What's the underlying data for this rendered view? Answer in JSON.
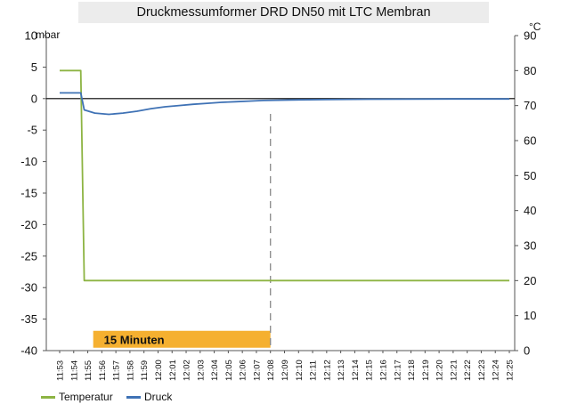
{
  "chart_data": {
    "type": "line",
    "title": "Druckmessumformer DRD DN50 mit LTC Membran",
    "y_left": {
      "label": "mbar",
      "ticks": [
        10,
        5,
        0,
        -5,
        -10,
        -15,
        -20,
        -25,
        -30,
        -35,
        -40
      ],
      "range": [
        -40,
        10
      ]
    },
    "y_right": {
      "label": "°C",
      "ticks": [
        90,
        80,
        70,
        60,
        50,
        40,
        30,
        20,
        10,
        0
      ],
      "range": [
        0,
        90
      ]
    },
    "x_ticks": [
      "11:53",
      "11:54",
      "11:55",
      "11:56",
      "11:57",
      "11:58",
      "11:59",
      "12:00",
      "12:01",
      "12:02",
      "12:03",
      "12:04",
      "12:05",
      "12:06",
      "12:07",
      "12:08",
      "12:09",
      "12:10",
      "12:11",
      "12:12",
      "12:13",
      "12:14",
      "12:15",
      "12:16",
      "12:17",
      "12:18",
      "12:19",
      "12:20",
      "12:21",
      "12:22",
      "12:23",
      "12:24",
      "12:25"
    ],
    "series": [
      {
        "name": "Temperatur",
        "axis": "right",
        "color": "#8db443",
        "points": [
          [
            "11:53",
            80
          ],
          [
            "11:54:30",
            80
          ],
          [
            "11:54:45",
            20
          ],
          [
            "12:25",
            20
          ]
        ]
      },
      {
        "name": "Druck",
        "axis": "left",
        "color": "#3f72b5",
        "points": [
          [
            "11:53",
            0.9
          ],
          [
            "11:54:30",
            0.9
          ],
          [
            "11:54:45",
            -1.8
          ],
          [
            "11:55:30",
            -2.3
          ],
          [
            "11:56:30",
            -2.5
          ],
          [
            "11:57:30",
            -2.3
          ],
          [
            "11:58:30",
            -2.0
          ],
          [
            "11:59:30",
            -1.6
          ],
          [
            "12:00:30",
            -1.3
          ],
          [
            "12:01:30",
            -1.1
          ],
          [
            "12:02:30",
            -0.9
          ],
          [
            "12:03:30",
            -0.75
          ],
          [
            "12:04:30",
            -0.6
          ],
          [
            "12:05:30",
            -0.5
          ],
          [
            "12:06:30",
            -0.4
          ],
          [
            "12:07:30",
            -0.3
          ],
          [
            "12:08:30",
            -0.25
          ],
          [
            "12:10",
            -0.2
          ],
          [
            "12:12",
            -0.15
          ],
          [
            "12:15",
            -0.1
          ],
          [
            "12:18",
            -0.08
          ],
          [
            "12:21",
            -0.05
          ],
          [
            "12:25",
            -0.05
          ]
        ]
      }
    ],
    "marker_line": {
      "time": "12:08",
      "style": "dashed",
      "color": "#888888"
    },
    "annotation": {
      "label": "15 Minuten",
      "color": "#f5b030",
      "start": "11:54:30",
      "end": "12:08",
      "value": -38.2
    },
    "legend_position": "bottom-left",
    "grid": false
  }
}
